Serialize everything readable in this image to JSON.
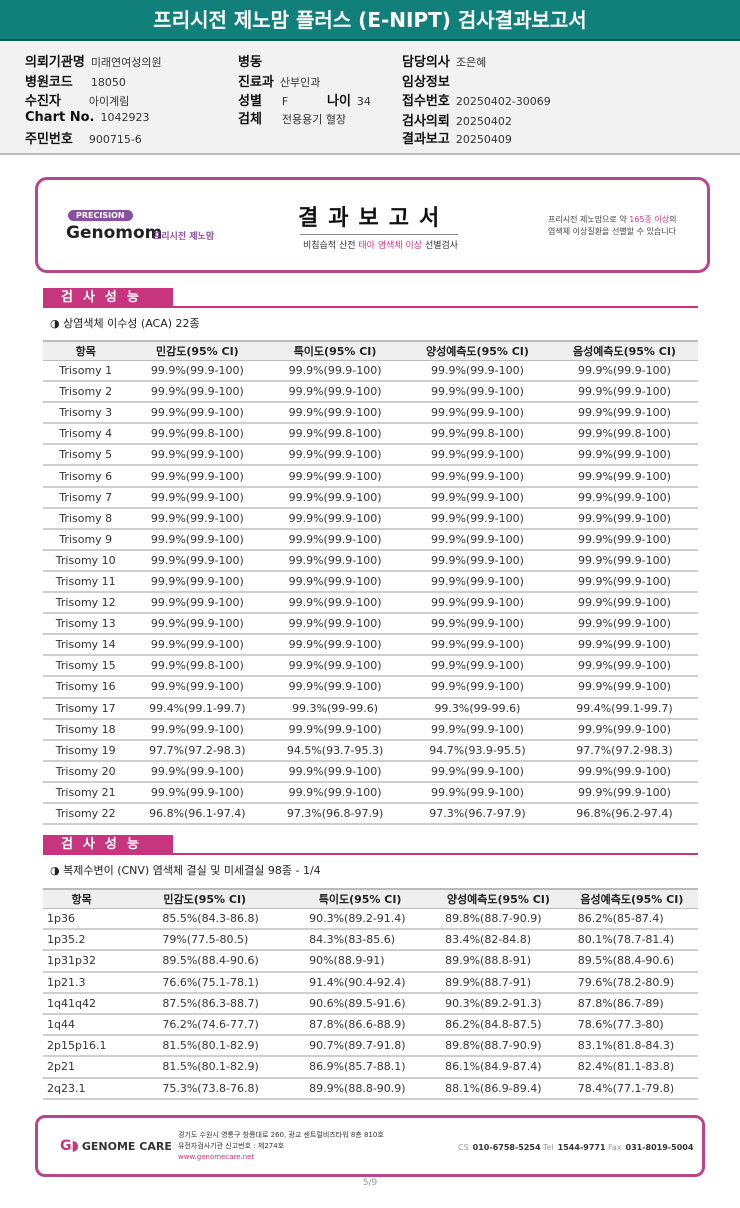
{
  "title": "프리시전 제노맘 플러스 (E-NIPT) 검사결과보고서",
  "info": {
    "institution": {
      "label": "의뢰기관명",
      "value": "미래연여성의원"
    },
    "hospital_code": {
      "label": "병원코드",
      "value": "18050"
    },
    "patient": {
      "label": "수진자",
      "value": "아이계림"
    },
    "chart_no": {
      "label": "Chart No.",
      "value": "1042923"
    },
    "resident_no": {
      "label": "주민번호",
      "value": "900715-6"
    },
    "ward": {
      "label": "병동",
      "value": ""
    },
    "department": {
      "label": "진료과",
      "value": "산부인과"
    },
    "sex": {
      "label": "성별",
      "value": "F"
    },
    "age": {
      "label": "나이",
      "value": "34"
    },
    "specimen": {
      "label": "검체",
      "value": "전용용기 혈장"
    },
    "doctor": {
      "label": "담당의사",
      "value": "조은혜"
    },
    "clinical": {
      "label": "임상정보",
      "value": ""
    },
    "receipt_no": {
      "label": "접수번호",
      "value": "20250402-30069"
    },
    "request_date": {
      "label": "검사의뢰",
      "value": "20250402"
    },
    "report_date": {
      "label": "결과보고",
      "value": "20250409"
    }
  },
  "report": {
    "logo_badge": "PRECISION",
    "logo_name": "Genomom",
    "logo_sub": "프리시전 제노맘",
    "title": "결과보고서",
    "subtitle_a": "비침습적 산전 ",
    "subtitle_hl": "태아 염색체 이상",
    "subtitle_b": " 선별검사",
    "right_a": "프리시전 제노맘으로 약 ",
    "right_hl": "165종 이상",
    "right_b": "의",
    "right_c": "염색체 이상질환을 선별할 수 있습니다"
  },
  "colors": {
    "header": "#12807a",
    "accent": "#c8357f",
    "frame": "#b8468e"
  },
  "section1": {
    "label": "검사성능",
    "subtitle": "◑ 상염색체 이수성 (ACA) 22종",
    "headers": [
      "항목",
      "민감도(95% CI)",
      "특이도(95% CI)",
      "양성예측도(95% CI)",
      "음성예측도(95% CI)"
    ],
    "rows": [
      [
        "Trisomy 1",
        "99.9%(99.9-100)",
        "99.9%(99.9-100)",
        "99.9%(99.9-100)",
        "99.9%(99.9-100)"
      ],
      [
        "Trisomy 2",
        "99.9%(99.9-100)",
        "99.9%(99.9-100)",
        "99.9%(99.9-100)",
        "99.9%(99.9-100)"
      ],
      [
        "Trisomy 3",
        "99.9%(99.9-100)",
        "99.9%(99.9-100)",
        "99.9%(99.9-100)",
        "99.9%(99.9-100)"
      ],
      [
        "Trisomy 4",
        "99.9%(99.8-100)",
        "99.9%(99.8-100)",
        "99.9%(99.8-100)",
        "99.9%(99.8-100)"
      ],
      [
        "Trisomy 5",
        "99.9%(99.9-100)",
        "99.9%(99.9-100)",
        "99.9%(99.9-100)",
        "99.9%(99.9-100)"
      ],
      [
        "Trisomy 6",
        "99.9%(99.9-100)",
        "99.9%(99.9-100)",
        "99.9%(99.9-100)",
        "99.9%(99.9-100)"
      ],
      [
        "Trisomy 7",
        "99.9%(99.9-100)",
        "99.9%(99.9-100)",
        "99.9%(99.9-100)",
        "99.9%(99.9-100)"
      ],
      [
        "Trisomy 8",
        "99.9%(99.9-100)",
        "99.9%(99.9-100)",
        "99.9%(99.9-100)",
        "99.9%(99.9-100)"
      ],
      [
        "Trisomy 9",
        "99.9%(99.9-100)",
        "99.9%(99.9-100)",
        "99.9%(99.9-100)",
        "99.9%(99.9-100)"
      ],
      [
        "Trisomy 10",
        "99.9%(99.9-100)",
        "99.9%(99.9-100)",
        "99.9%(99.9-100)",
        "99.9%(99.9-100)"
      ],
      [
        "Trisomy 11",
        "99.9%(99.9-100)",
        "99.9%(99.9-100)",
        "99.9%(99.9-100)",
        "99.9%(99.9-100)"
      ],
      [
        "Trisomy 12",
        "99.9%(99.9-100)",
        "99.9%(99.9-100)",
        "99.9%(99.9-100)",
        "99.9%(99.9-100)"
      ],
      [
        "Trisomy 13",
        "99.9%(99.9-100)",
        "99.9%(99.9-100)",
        "99.9%(99.9-100)",
        "99.9%(99.9-100)"
      ],
      [
        "Trisomy 14",
        "99.9%(99.9-100)",
        "99.9%(99.9-100)",
        "99.9%(99.9-100)",
        "99.9%(99.9-100)"
      ],
      [
        "Trisomy 15",
        "99.9%(99.8-100)",
        "99.9%(99.9-100)",
        "99.9%(99.9-100)",
        "99.9%(99.9-100)"
      ],
      [
        "Trisomy 16",
        "99.9%(99.9-100)",
        "99.9%(99.9-100)",
        "99.9%(99.9-100)",
        "99.9%(99.9-100)"
      ],
      [
        "Trisomy 17",
        "99.4%(99.1-99.7)",
        "99.3%(99-99.6)",
        "99.3%(99-99.6)",
        "99.4%(99.1-99.7)"
      ],
      [
        "Trisomy 18",
        "99.9%(99.9-100)",
        "99.9%(99.9-100)",
        "99.9%(99.9-100)",
        "99.9%(99.9-100)"
      ],
      [
        "Trisomy 19",
        "97.7%(97.2-98.3)",
        "94.5%(93.7-95.3)",
        "94.7%(93.9-95.5)",
        "97.7%(97.2-98.3)"
      ],
      [
        "Trisomy 20",
        "99.9%(99.9-100)",
        "99.9%(99.9-100)",
        "99.9%(99.9-100)",
        "99.9%(99.9-100)"
      ],
      [
        "Trisomy 21",
        "99.9%(99.9-100)",
        "99.9%(99.9-100)",
        "99.9%(99.9-100)",
        "99.9%(99.9-100)"
      ],
      [
        "Trisomy 22",
        "96.8%(96.1-97.4)",
        "97.3%(96.8-97.9)",
        "97.3%(96.7-97.9)",
        "96.8%(96.2-97.4)"
      ]
    ]
  },
  "section2": {
    "label": "검사성능",
    "subtitle": "◑ 복제수변이 (CNV) 염색체 결실 및 미세결실 98종 - 1/4",
    "headers": [
      "항목",
      "민감도(95% CI)",
      "특이도(95% CI)",
      "양성예측도(95% CI)",
      "음성예측도(95% CI)"
    ],
    "rows": [
      [
        "1p36",
        "85.5%(84.3-86.8)",
        "90.3%(89.2-91.4)",
        "89.8%(88.7-90.9)",
        "86.2%(85-87.4)"
      ],
      [
        "1p35.2",
        "79%(77.5-80.5)",
        "84.3%(83-85.6)",
        "83.4%(82-84.8)",
        "80.1%(78.7-81.4)"
      ],
      [
        "1p31p32",
        "89.5%(88.4-90.6)",
        "90%(88.9-91)",
        "89.9%(88.8-91)",
        "89.5%(88.4-90.6)"
      ],
      [
        "1p21.3",
        "76.6%(75.1-78.1)",
        "91.4%(90.4-92.4)",
        "89.9%(88.7-91)",
        "79.6%(78.2-80.9)"
      ],
      [
        "1q41q42",
        "87.5%(86.3-88.7)",
        "90.6%(89.5-91.6)",
        "90.3%(89.2-91.3)",
        "87.8%(86.7-89)"
      ],
      [
        "1q44",
        "76.2%(74.6-77.7)",
        "87.8%(86.6-88.9)",
        "86.2%(84.8-87.5)",
        "78.6%(77.3-80)"
      ],
      [
        "2p15p16.1",
        "81.5%(80.1-82.9)",
        "90.7%(89.7-91.8)",
        "89.8%(88.7-90.9)",
        "83.1%(81.8-84.3)"
      ],
      [
        "2p21",
        "81.5%(80.1-82.9)",
        "86.9%(85.7-88.1)",
        "86.1%(84.9-87.4)",
        "82.4%(81.1-83.8)"
      ],
      [
        "2q23.1",
        "75.3%(73.8-76.8)",
        "89.9%(88.8-90.9)",
        "88.1%(86.9-89.4)",
        "78.4%(77.1-79.8)"
      ]
    ]
  },
  "footer": {
    "logo": "GENOME CARE",
    "address": "경기도 수원시 영통구 창룡대로 260, 광교 센트럴비즈타워 8층 810호",
    "license": "유전자검사기관 신고번호 : 제274호",
    "website": "www.genomecare.net",
    "cs_label": "CS",
    "cs": "010-6758-5254",
    "tel_label": "Tel",
    "tel": "1544-9771",
    "fax_label": "Fax",
    "fax": "031-8019-5004"
  },
  "page_number": "5/9"
}
